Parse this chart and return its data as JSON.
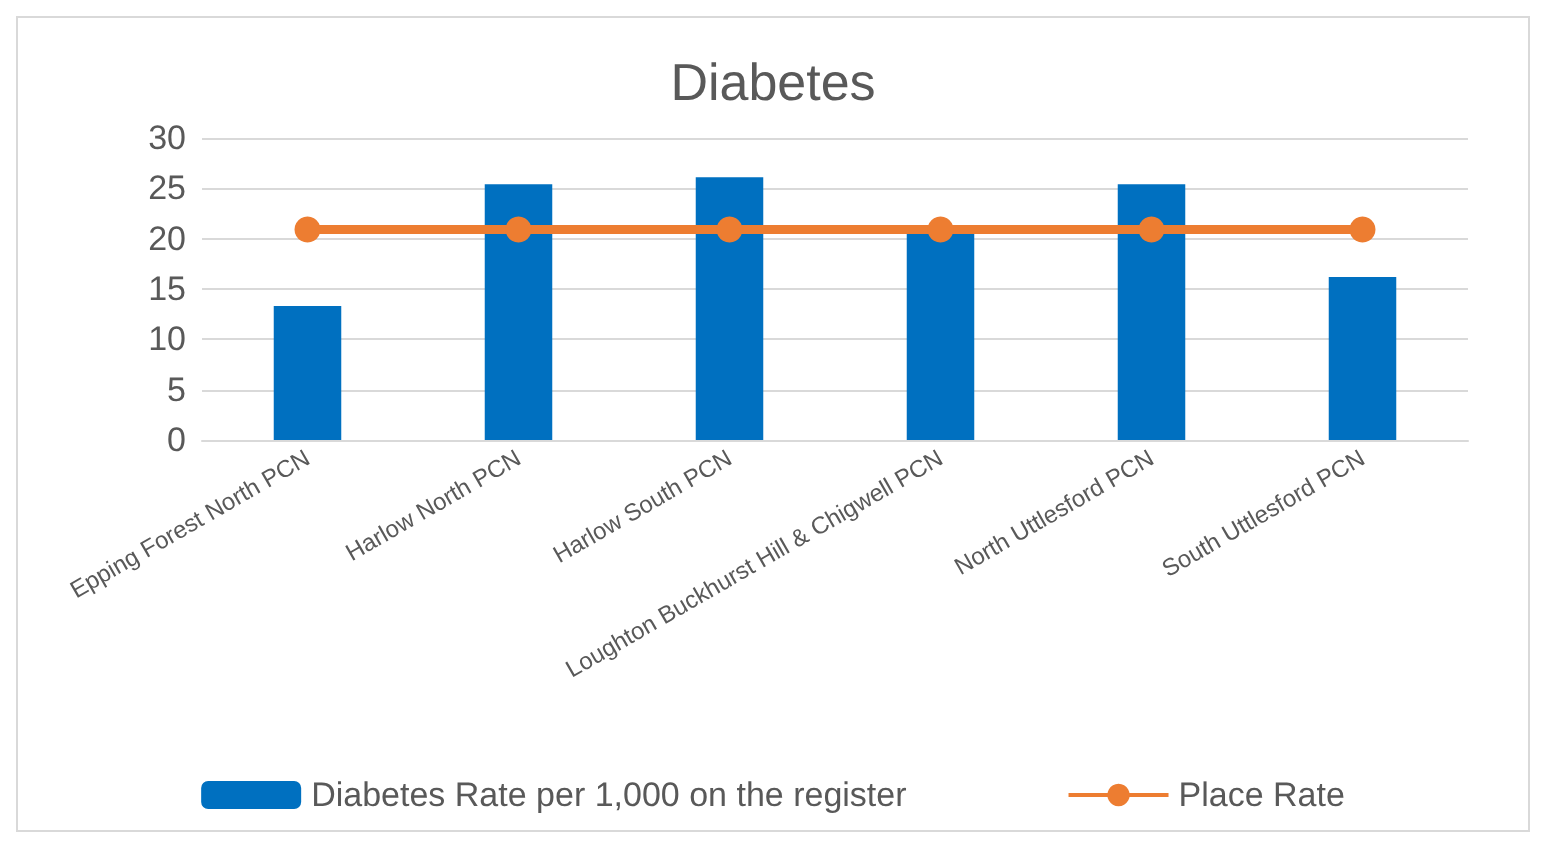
{
  "chart_data": {
    "type": "bar",
    "title": "Diabetes",
    "categories": [
      "Epping Forest North PCN",
      "Harlow North PCN",
      "Harlow South PCN",
      "Loughton Buckhurst Hill & Chigwell PCN",
      "North Uttlesford PCN",
      "South Uttlesford PCN"
    ],
    "series": [
      {
        "name": "Diabetes Rate per 1,000 on the register",
        "color": "#0070c0",
        "values": [
          13.3,
          25.4,
          26.1,
          20.5,
          25.4,
          16.2
        ]
      },
      {
        "name": "Place Rate",
        "type": "line",
        "color": "#ed7d31",
        "values": [
          20.9,
          20.9,
          20.9,
          20.9,
          20.9,
          20.9
        ]
      }
    ],
    "ylim": [
      0,
      30
    ],
    "yticks": [
      0,
      5,
      10,
      15,
      20,
      25,
      30
    ],
    "grid": "y",
    "legend": "bottom",
    "marker": "circle"
  }
}
